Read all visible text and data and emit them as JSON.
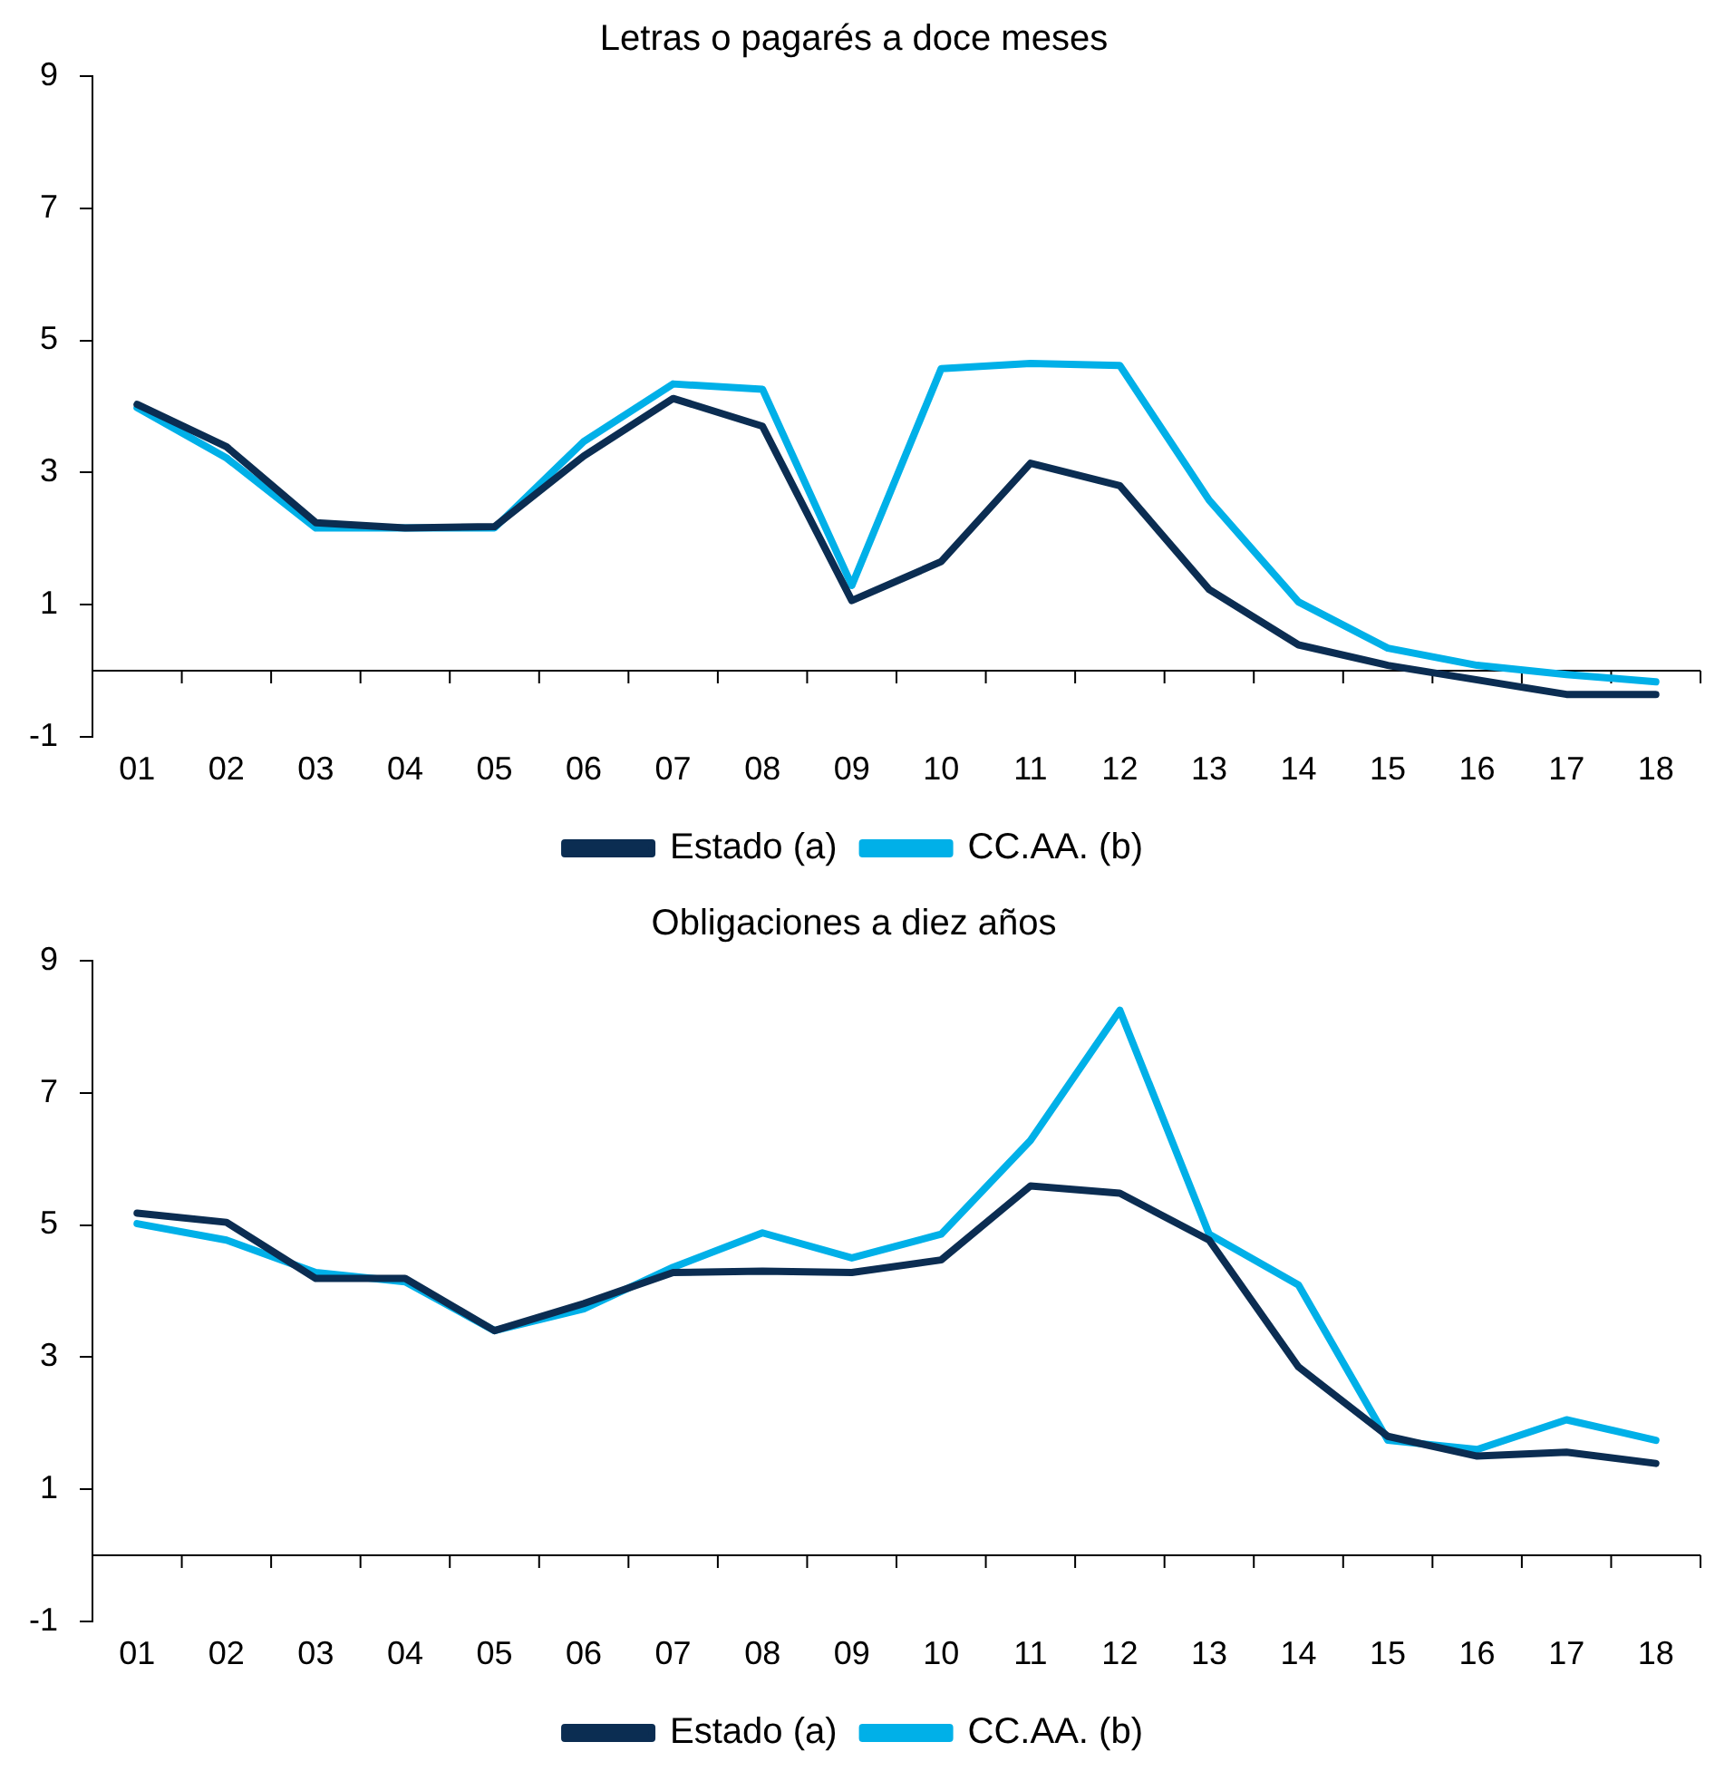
{
  "chart_data": [
    {
      "type": "line",
      "title": "Letras o pagarés a doce meses",
      "categories": [
        "01",
        "02",
        "03",
        "04",
        "05",
        "06",
        "07",
        "08",
        "09",
        "10",
        "11",
        "12",
        "13",
        "14",
        "15",
        "16",
        "17",
        "18"
      ],
      "series": [
        {
          "name": "Estado (a)",
          "color": "#0b2d52",
          "values": [
            4.03,
            3.39,
            2.24,
            2.16,
            2.18,
            3.25,
            4.12,
            3.7,
            1.06,
            1.65,
            3.14,
            2.8,
            1.23,
            0.39,
            0.08,
            -0.14,
            -0.36,
            -0.36
          ]
        },
        {
          "name": "CC.AA. (b)",
          "color": "#00b0e8",
          "values": [
            3.98,
            3.22,
            2.16,
            2.16,
            2.16,
            3.47,
            4.34,
            4.26,
            1.29,
            4.57,
            4.65,
            4.62,
            2.58,
            1.04,
            0.34,
            0.08,
            -0.06,
            -0.17
          ]
        }
      ],
      "ylim": [
        -1,
        9
      ],
      "yticks": [
        -1,
        1,
        3,
        5,
        7,
        9
      ],
      "grid": false,
      "legend": "bottom",
      "marker": "none",
      "line_style": "solid"
    },
    {
      "type": "line",
      "title": "Obligaciones a diez años",
      "categories": [
        "01",
        "02",
        "03",
        "04",
        "05",
        "06",
        "07",
        "08",
        "09",
        "10",
        "11",
        "12",
        "13",
        "14",
        "15",
        "16",
        "17",
        "18"
      ],
      "series": [
        {
          "name": "Estado (a)",
          "color": "#0b2d52",
          "values": [
            5.18,
            5.04,
            4.19,
            4.19,
            3.4,
            3.81,
            4.28,
            4.3,
            4.28,
            4.47,
            5.59,
            5.48,
            4.77,
            2.85,
            1.8,
            1.5,
            1.56,
            1.39
          ]
        },
        {
          "name": "CC.AA. (b)",
          "color": "#00b0e8",
          "values": [
            5.02,
            4.77,
            4.28,
            4.14,
            3.4,
            3.73,
            4.36,
            4.88,
            4.5,
            4.86,
            6.28,
            8.25,
            4.86,
            4.09,
            1.74,
            1.6,
            2.05,
            1.74
          ]
        }
      ],
      "ylim": [
        -1,
        9
      ],
      "yticks": [
        -1,
        1,
        3,
        5,
        7,
        9
      ],
      "grid": false,
      "legend": "bottom",
      "marker": "none",
      "line_style": "solid"
    }
  ]
}
